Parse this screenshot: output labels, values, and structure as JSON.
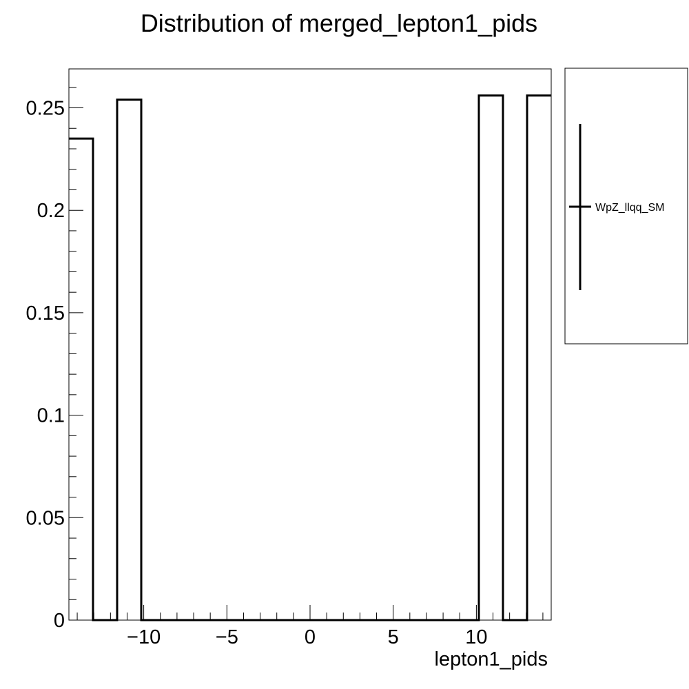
{
  "chart_data": {
    "type": "histogram",
    "title": "Distribution of merged_lepton1_pids",
    "xlabel": "lepton1_pids",
    "ylabel": "",
    "xlim": [
      -14.5,
      14.5
    ],
    "ylim": [
      0,
      0.269
    ],
    "x_ticks": [
      -10,
      -5,
      0,
      5,
      10
    ],
    "x_tick_labels": [
      "−10",
      "−5",
      "0",
      "5",
      "10"
    ],
    "y_ticks": [
      0,
      0.05,
      0.1,
      0.15,
      0.2,
      0.25
    ],
    "y_tick_labels": [
      "0",
      "0.05",
      "0.1",
      "0.15",
      "0.2",
      "0.25"
    ],
    "bin_edges": [
      -14.5,
      -13.05,
      -11.6,
      -10.15,
      -8.7,
      -7.25,
      -5.8,
      -4.35,
      -2.9,
      -1.45,
      0,
      1.45,
      2.9,
      4.35,
      5.8,
      7.25,
      8.7,
      10.15,
      11.6,
      13.05,
      14.5
    ],
    "series": [
      {
        "name": "WpZ_llqq_SM",
        "color": "#000000",
        "values": [
          0.235,
          0,
          0.254,
          0,
          0,
          0,
          0,
          0,
          0,
          0,
          0,
          0,
          0,
          0,
          0,
          0,
          0,
          0.256,
          0,
          0.256
        ]
      }
    ],
    "legend": {
      "position": "right",
      "entries": [
        "WpZ_llqq_SM"
      ]
    },
    "grid": false
  }
}
